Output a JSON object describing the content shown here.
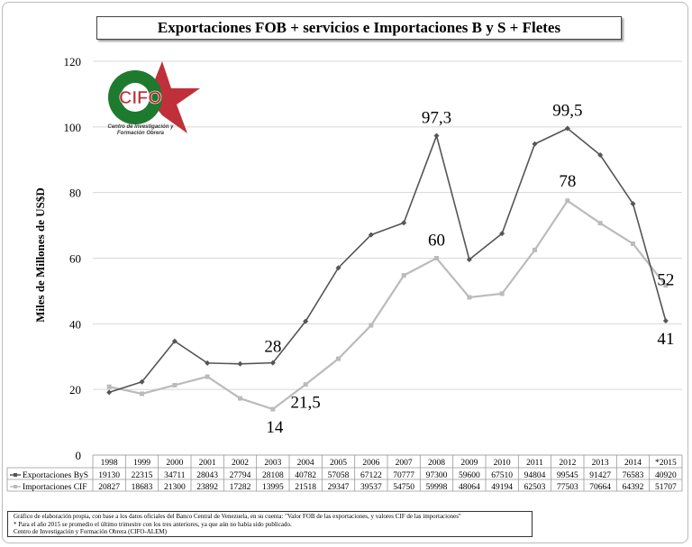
{
  "chart_data": {
    "type": "line",
    "title": "Exportaciones FOB + servicios e Importaciones B y S + Fletes",
    "ylabel": "Miles de Millones de US$D",
    "xlabel": "",
    "ylim": [
      0,
      120
    ],
    "yticks": [
      "0",
      "20",
      "40",
      "60",
      "80",
      "100",
      "120"
    ],
    "grid": true,
    "categories": [
      "1998",
      "1999",
      "2000",
      "2001",
      "2002",
      "2003",
      "2004",
      "2005",
      "2006",
      "2007",
      "2008",
      "2009",
      "2010",
      "2011",
      "2012",
      "2013",
      "2014",
      "*2015"
    ],
    "series": [
      {
        "name": "Exportaciones ByS",
        "color": "#555555",
        "values": [
          19130,
          22315,
          34711,
          28043,
          27794,
          28108,
          40782,
          57058,
          67122,
          70777,
          97300,
          59600,
          67510,
          94804,
          99545,
          91427,
          76583,
          40920
        ]
      },
      {
        "name": "Importaciones CIF",
        "color": "#bbbbbb",
        "values": [
          20827,
          18683,
          21300,
          23892,
          17282,
          13995,
          21518,
          29347,
          39537,
          54750,
          59998,
          48064,
          49194,
          62503,
          77503,
          70664,
          64392,
          51707
        ]
      }
    ],
    "annotations": [
      {
        "text": "28",
        "series": 0,
        "index": 5
      },
      {
        "text": "14",
        "series": 1,
        "index": 5
      },
      {
        "text": "21,5",
        "series": 1,
        "index": 6
      },
      {
        "text": "60",
        "series": 1,
        "index": 10
      },
      {
        "text": "97,3",
        "series": 0,
        "index": 10
      },
      {
        "text": "99,5",
        "series": 0,
        "index": 14
      },
      {
        "text": "78",
        "series": 1,
        "index": 14
      },
      {
        "text": "52",
        "series": 1,
        "index": 17
      },
      {
        "text": "41",
        "series": 0,
        "index": 17
      }
    ]
  },
  "logo": {
    "name": "CIFO",
    "subtitle": "Centro de Investigación y Formación Obrera"
  },
  "footnote": [
    "Gráfico de elaboración propia, con base a los datos oficiales del Banco Central de Venezuela, en su cuenta: \"Valor FOB de las exportaciones,  y valores CIF de las importaciones\"",
    "* Para el año 2015  se promedio el último trimestre con los tres anteriores, ya que aún no había sido publicado.",
    "Centro de Investigación y Formación Obrera (CIFO-ALEM)"
  ]
}
